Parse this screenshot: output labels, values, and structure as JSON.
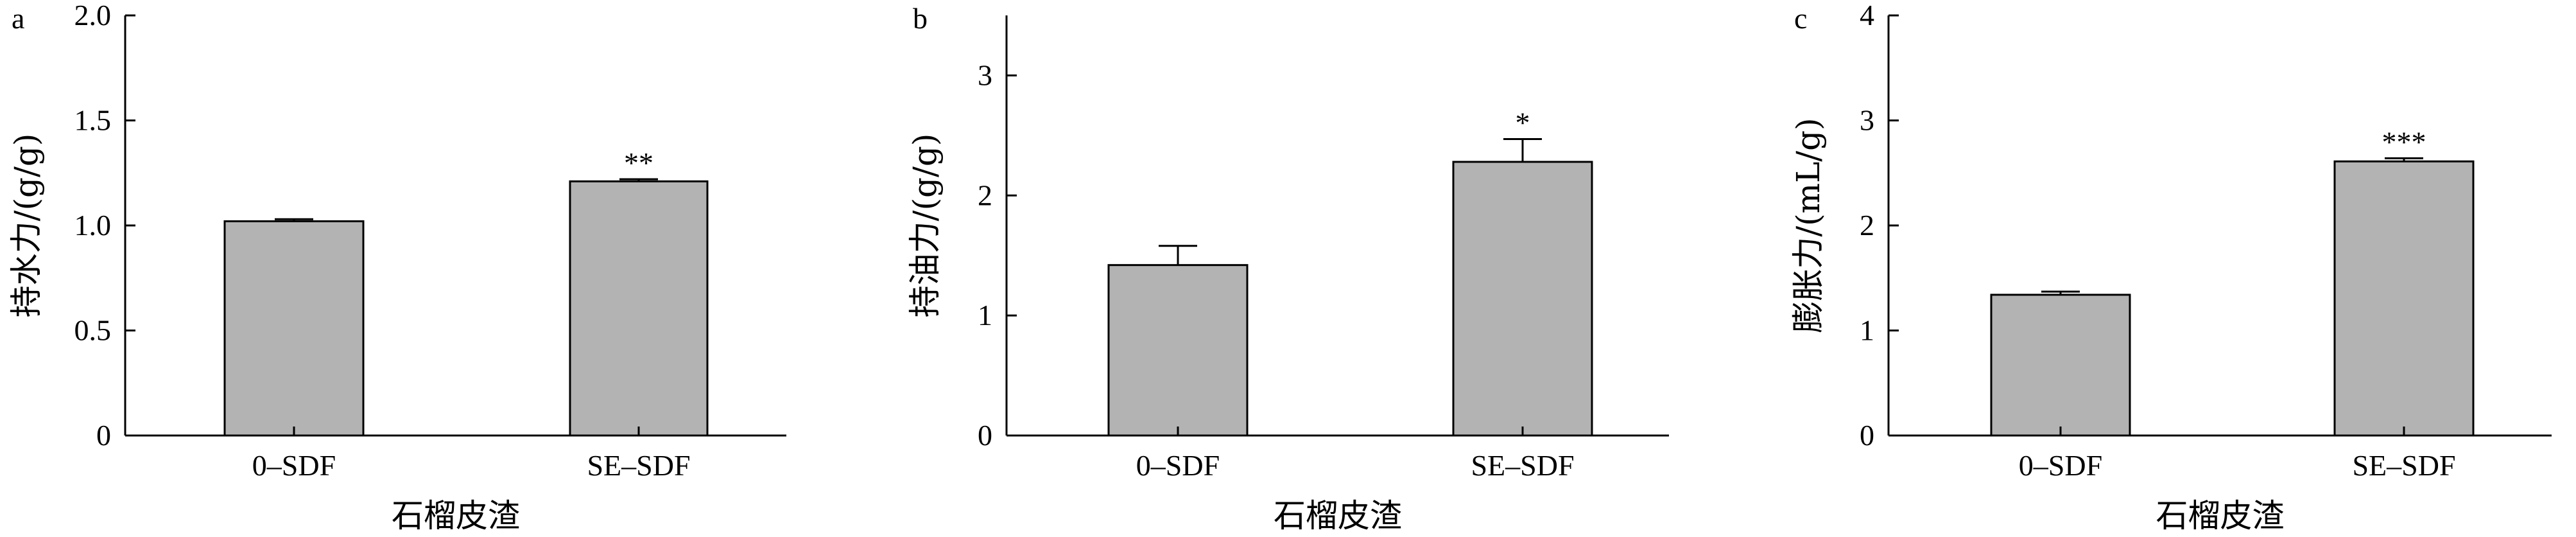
{
  "chart_data": [
    {
      "type": "bar",
      "panel": "a",
      "categories": [
        "0–SDF",
        "SE–SDF"
      ],
      "values": [
        1.02,
        1.21
      ],
      "errors": [
        0.01,
        0.01
      ],
      "significance": [
        "",
        "**"
      ],
      "xlabel": "石榴皮渣",
      "ylabel": "持水力/(g/g)",
      "ylim": [
        0,
        2.0
      ],
      "yticks": [
        "0",
        "0.5",
        "1.0",
        "1.5",
        "2.0"
      ],
      "ytick_values": [
        0,
        0.5,
        1.0,
        1.5,
        2.0
      ],
      "bar_color": "#b3b3b3",
      "grid": false
    },
    {
      "type": "bar",
      "panel": "b",
      "categories": [
        "0–SDF",
        "SE–SDF"
      ],
      "values": [
        1.42,
        2.28
      ],
      "errors": [
        0.16,
        0.19
      ],
      "significance": [
        "",
        "*"
      ],
      "xlabel": "石榴皮渣",
      "ylabel": "持油力/(g/g)",
      "ylim": [
        0,
        3.5
      ],
      "yticks": [
        "0",
        "1",
        "2",
        "3"
      ],
      "ytick_values": [
        0,
        1,
        2,
        3
      ],
      "bar_color": "#b3b3b3",
      "grid": false
    },
    {
      "type": "bar",
      "panel": "c",
      "categories": [
        "0–SDF",
        "SE–SDF"
      ],
      "values": [
        1.34,
        2.61
      ],
      "errors": [
        0.03,
        0.03
      ],
      "significance": [
        "",
        "***"
      ],
      "xlabel": "石榴皮渣",
      "ylabel": "膨胀力/(mL/g)",
      "ylim": [
        0,
        4
      ],
      "yticks": [
        "0",
        "1",
        "2",
        "3",
        "4"
      ],
      "ytick_values": [
        0,
        1,
        2,
        3,
        4
      ],
      "bar_color": "#b3b3b3",
      "grid": false
    }
  ]
}
